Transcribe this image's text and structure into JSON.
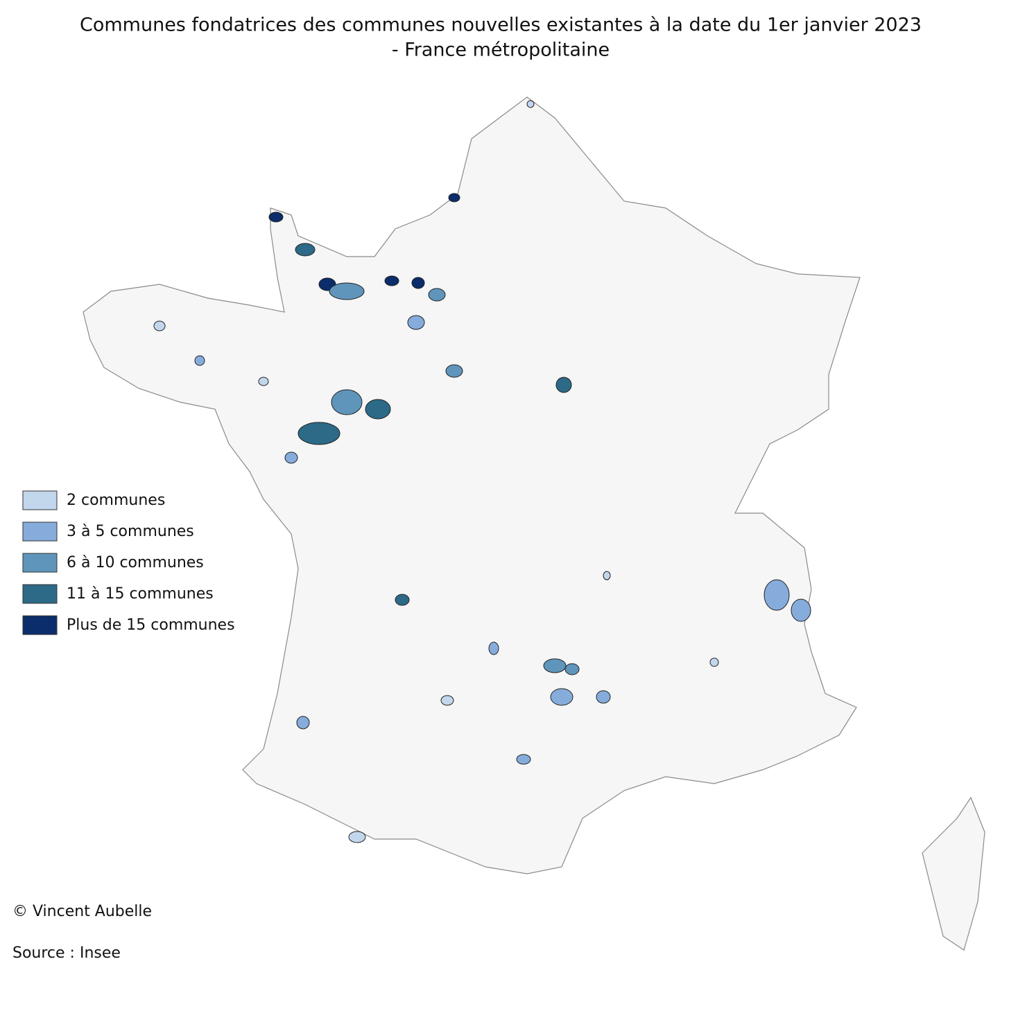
{
  "title": [
    "Communes fondatrices des communes nouvelles existantes à la date du 1er janvier 2023",
    "- France métropolitaine"
  ],
  "legend": [
    {
      "label": "2 communes",
      "color": "#c2d6ec"
    },
    {
      "label": "3 à 5 communes",
      "color": "#86acdc"
    },
    {
      "label": "6 à 10 communes",
      "color": "#5f95bb"
    },
    {
      "label": "11 à 15 communes",
      "color": "#2c6a87"
    },
    {
      "label": "Plus de 15 communes",
      "color": "#0b2d6b"
    }
  ],
  "credit": "© Vincent Aubelle",
  "source": "Source : Insee"
}
